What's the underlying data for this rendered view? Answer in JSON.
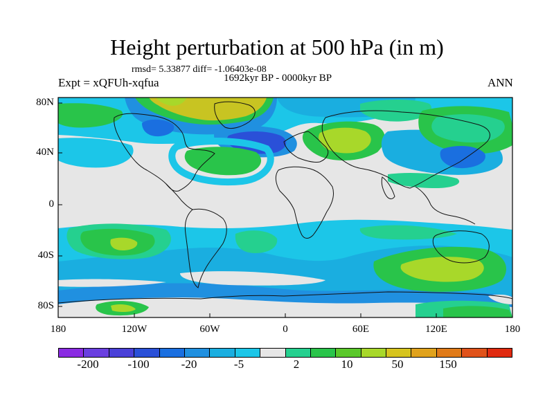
{
  "header": {
    "title": "Height perturbation at 500 hPa (in m)",
    "stats": "rmsd= 5.33877 diff= -1.06403e-08",
    "period": "1692kyr BP - 0000kyr BP",
    "experiment": "Expt = xQFUh-xqfua",
    "season": "ANN"
  },
  "axes": {
    "lat_labels": [
      "80N",
      "40N",
      "0",
      "40S",
      "80S"
    ],
    "lon_labels": [
      "180",
      "120W",
      "60W",
      "0",
      "60E",
      "120E",
      "180"
    ]
  },
  "colorbar": {
    "colors": [
      "#8a2be2",
      "#6a3fe0",
      "#4a40d8",
      "#2a50d8",
      "#1a6fe0",
      "#2090e0",
      "#1aaee0",
      "#1cc6e8",
      "#e6e6e6",
      "#25d08f",
      "#29c44a",
      "#5ac82a",
      "#a8d82a",
      "#d6c41e",
      "#e0a21c",
      "#e07a18",
      "#e0521a",
      "#e02a10"
    ],
    "labels": [
      "-200",
      "-100",
      "-20",
      "-5",
      "2",
      "10",
      "50",
      "150"
    ]
  },
  "map_colors": {
    "ocean_bg": "#e6e6e6",
    "cyan": "#1cc6e8",
    "lightblue": "#1aaee0",
    "blue": "#2090e0",
    "midblue": "#1a6fe0",
    "darkblue": "#2a50d8",
    "teal": "#25d08f",
    "green": "#29c44a",
    "lime": "#a8d82a",
    "olive": "#c8c422",
    "coast": "#111111"
  }
}
